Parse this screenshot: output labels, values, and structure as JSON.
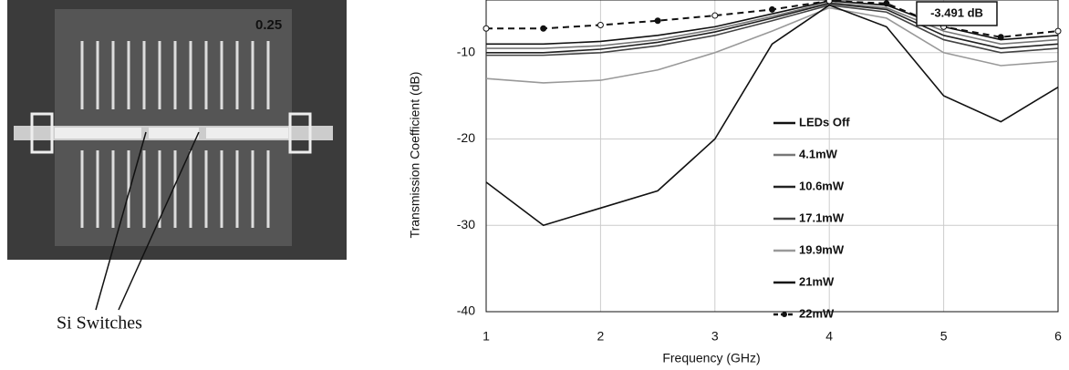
{
  "photo": {
    "board_label": "0.25",
    "label": "Si Switches"
  },
  "chart_data": {
    "type": "line",
    "x_label": "Frequency (GHz)",
    "y_label": "Transmission Coefficient (dB)",
    "annotation": "-3.491 dB",
    "x": [
      1,
      1.5,
      2,
      2.5,
      3,
      3.5,
      4,
      4.5,
      5,
      5.5,
      6
    ],
    "xlim": [
      1,
      6
    ],
    "xticks": [
      1,
      2,
      3,
      4,
      5,
      6
    ],
    "ylim": [
      -40,
      -3.9
    ],
    "yticks": [
      -40,
      -30,
      -20,
      -10
    ],
    "grid": true,
    "legend": "center",
    "series": [
      {
        "name": "LEDs Off",
        "color": "#111111",
        "values": [
          -9,
          -9,
          -8.7,
          -8,
          -7,
          -5.5,
          -4,
          -4.5,
          -7,
          -8.5,
          -8
        ]
      },
      {
        "name": "4.1mW",
        "color": "#777777",
        "values": [
          -9.5,
          -9.5,
          -9.2,
          -8.5,
          -7.3,
          -5.8,
          -4.2,
          -4.8,
          -7.5,
          -9,
          -8.5
        ]
      },
      {
        "name": "10.6mW",
        "color": "#222222",
        "values": [
          -10,
          -10,
          -9.6,
          -8.8,
          -7.6,
          -6,
          -4.3,
          -5,
          -8,
          -9.5,
          -9
        ]
      },
      {
        "name": "17.1mW",
        "color": "#444444",
        "values": [
          -10.3,
          -10.3,
          -10,
          -9.2,
          -8,
          -6.3,
          -4.5,
          -5.3,
          -8.5,
          -10,
          -9.5
        ]
      },
      {
        "name": "19.9mW",
        "color": "#999999",
        "values": [
          -13,
          -13.5,
          -13.2,
          -12,
          -10,
          -7.5,
          -4.8,
          -6,
          -10,
          -11.5,
          -11
        ]
      },
      {
        "name": "21mW",
        "color": "#111111",
        "values": [
          -25,
          -30,
          -28,
          -26,
          -20,
          -9,
          -4.5,
          -7,
          -15,
          -18,
          -14
        ]
      },
      {
        "name": "22mW",
        "color": "#111111",
        "dashed": true,
        "markers": true,
        "values": [
          -7.2,
          -7.2,
          -6.8,
          -6.3,
          -5.7,
          -5,
          -4,
          -4.3,
          -7,
          -8.2,
          -7.5
        ]
      }
    ]
  }
}
